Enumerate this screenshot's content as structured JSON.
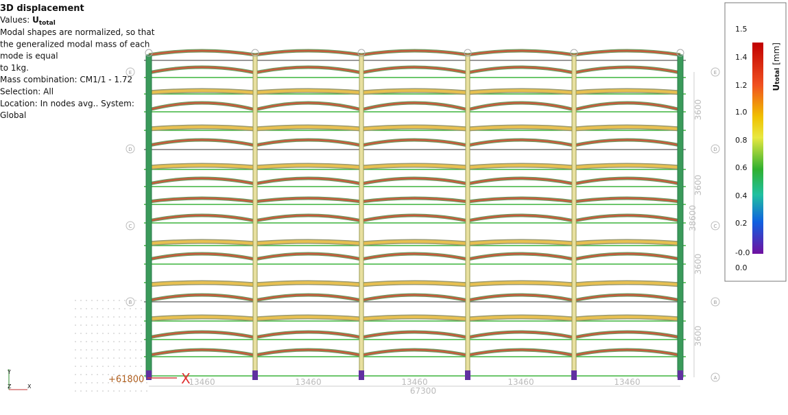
{
  "info": {
    "title": "3D displacement",
    "values_label": "Values:",
    "values_symbol": "U",
    "values_sub": "total",
    "lines": [
      "Modal shapes are normalized, so that",
      "the generalized modal mass of each",
      "mode is equal",
      "to 1kg.",
      "Mass combination: CM1/1 - 1.72",
      "Selection: All",
      "Location: In nodes avg.. System:",
      "Global"
    ]
  },
  "legend": {
    "symbol": "U",
    "sub": "total",
    "unit": "[mm]",
    "labels": [
      "1.5",
      "1.4",
      "1.2",
      "1.0",
      "0.8",
      "0.6",
      "0.4",
      "0.2",
      "-0.0",
      "0.0"
    ]
  },
  "dimensions": {
    "spans": [
      "13460",
      "13460",
      "13460",
      "13460",
      "13460"
    ],
    "total": "67300",
    "heights": [
      "3600",
      "3600",
      "3600",
      "3600"
    ],
    "height_total": "38600"
  },
  "grid_rows": [
    "E",
    "D",
    "C",
    "B",
    "A"
  ],
  "origin": {
    "label": "+61800",
    "marker": "X"
  },
  "axes": {
    "y": "Y",
    "z": "Z",
    "x": "X"
  }
}
